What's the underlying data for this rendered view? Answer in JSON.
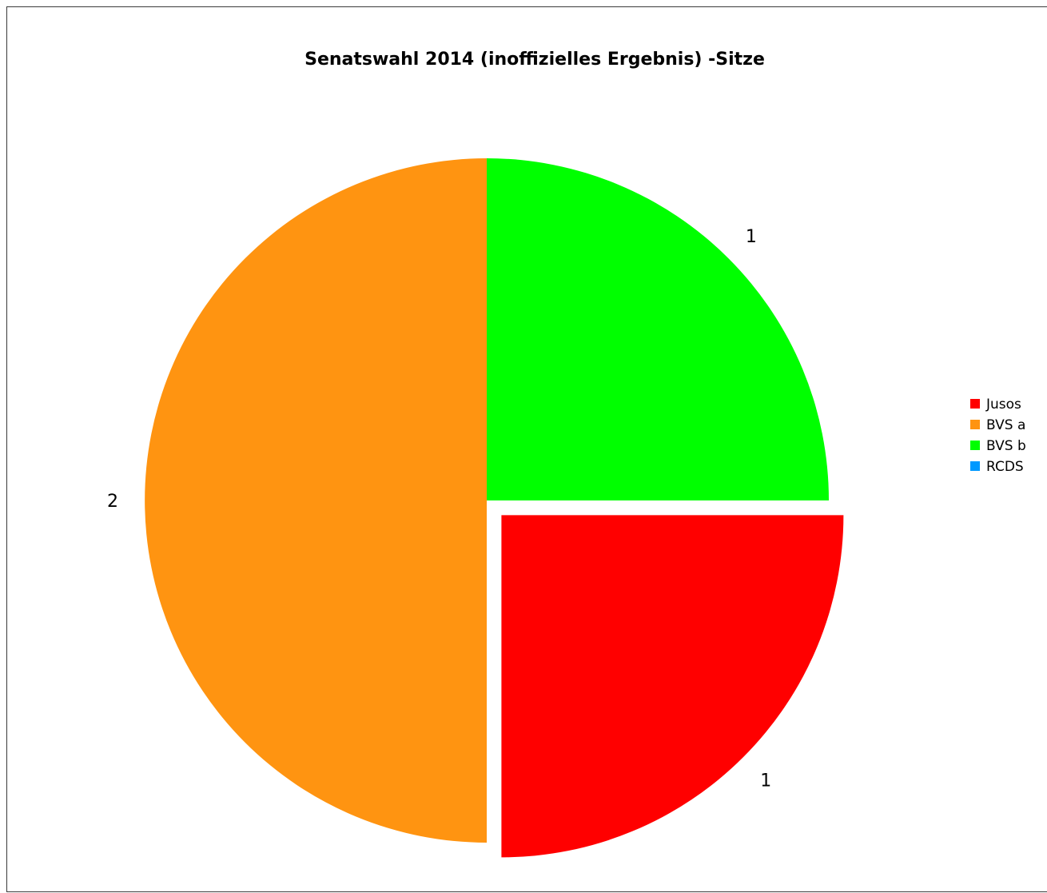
{
  "chart_data": {
    "type": "pie",
    "title": "Senatswahl 2014 (inoffizielles Ergebnis) -Sitze",
    "categories": [
      "Jusos",
      "BVS a",
      "BVS b",
      "RCDS"
    ],
    "values": [
      1,
      2,
      1,
      0
    ],
    "data_labels": [
      "1",
      "2",
      "1",
      ""
    ],
    "colors": [
      "#ff0000",
      "#ff9411",
      "#00ff00",
      "#0099ff"
    ],
    "exploded": [
      "Jusos"
    ],
    "legend_position": "right"
  }
}
